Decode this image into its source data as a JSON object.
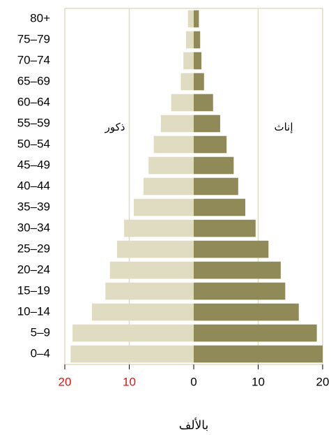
{
  "chart_data": {
    "type": "pyramid",
    "categories": [
      "0–4",
      "5–9",
      "10–14",
      "15–19",
      "20–24",
      "25–29",
      "30–34",
      "35–39",
      "40–44",
      "45–49",
      "50–54",
      "55–59",
      "60–64",
      "65–69",
      "70–74",
      "75–79",
      "80+"
    ],
    "series": [
      {
        "name": "ذكور",
        "color": "#e0dcc2",
        "values": [
          -19.1,
          -18.8,
          -15.8,
          -13.7,
          -13.0,
          -11.9,
          -10.8,
          -9.3,
          -7.8,
          -7.0,
          -6.2,
          -5.1,
          -3.5,
          -2.0,
          -1.6,
          -1.2,
          -0.9
        ]
      },
      {
        "name": "إناث",
        "color": "#8f8a57",
        "values": [
          20.0,
          19.1,
          16.3,
          14.2,
          13.5,
          11.6,
          9.6,
          8.0,
          6.9,
          6.2,
          5.1,
          4.1,
          3.0,
          1.6,
          1.2,
          1.0,
          0.8
        ]
      }
    ],
    "xlabel": "بالألف",
    "xlim": [
      -20,
      20
    ],
    "xticks": [
      {
        "value": -20,
        "label": "20"
      },
      {
        "value": -10,
        "label": "10"
      },
      0,
      10,
      20
    ],
    "negative_tick_color": "#e8120c",
    "grid": true
  }
}
